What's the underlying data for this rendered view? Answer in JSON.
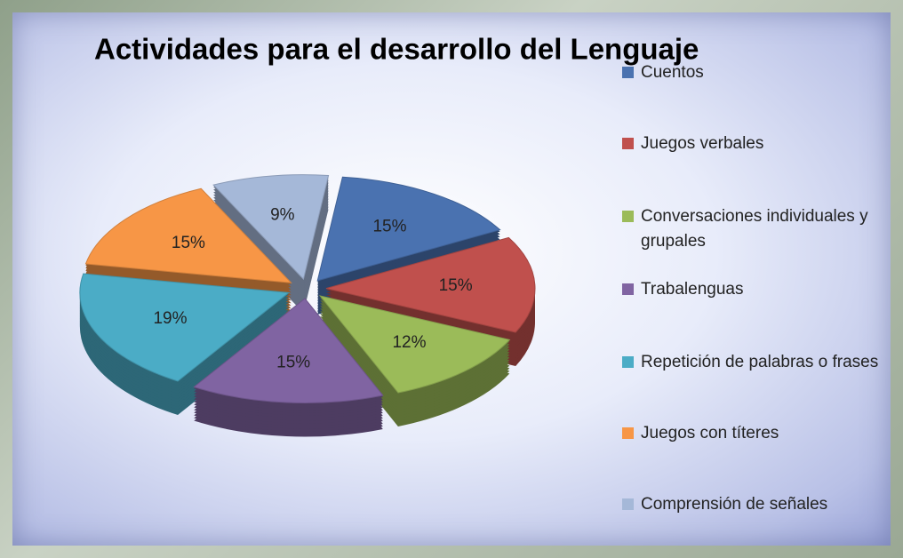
{
  "chart_data": {
    "type": "pie",
    "title": "Actividades  para el desarrollo del Lenguaje",
    "categories": [
      "Cuentos",
      "Juegos verbales",
      "Conversaciones individuales y grupales",
      "Trabalenguas",
      "Repetición de palabras  o frases",
      "Juegos con títeres",
      "Comprensión de señales"
    ],
    "values": [
      15,
      15,
      12,
      15,
      19,
      15,
      9
    ],
    "value_labels": [
      "15%",
      "15%",
      "12%",
      "15%",
      "19%",
      "15%",
      "9%"
    ],
    "colors": [
      "#4a72b0",
      "#c0504d",
      "#9bbb59",
      "#8064a2",
      "#4bacc6",
      "#f79646",
      "#a5b8d8"
    ],
    "legend": "right"
  }
}
